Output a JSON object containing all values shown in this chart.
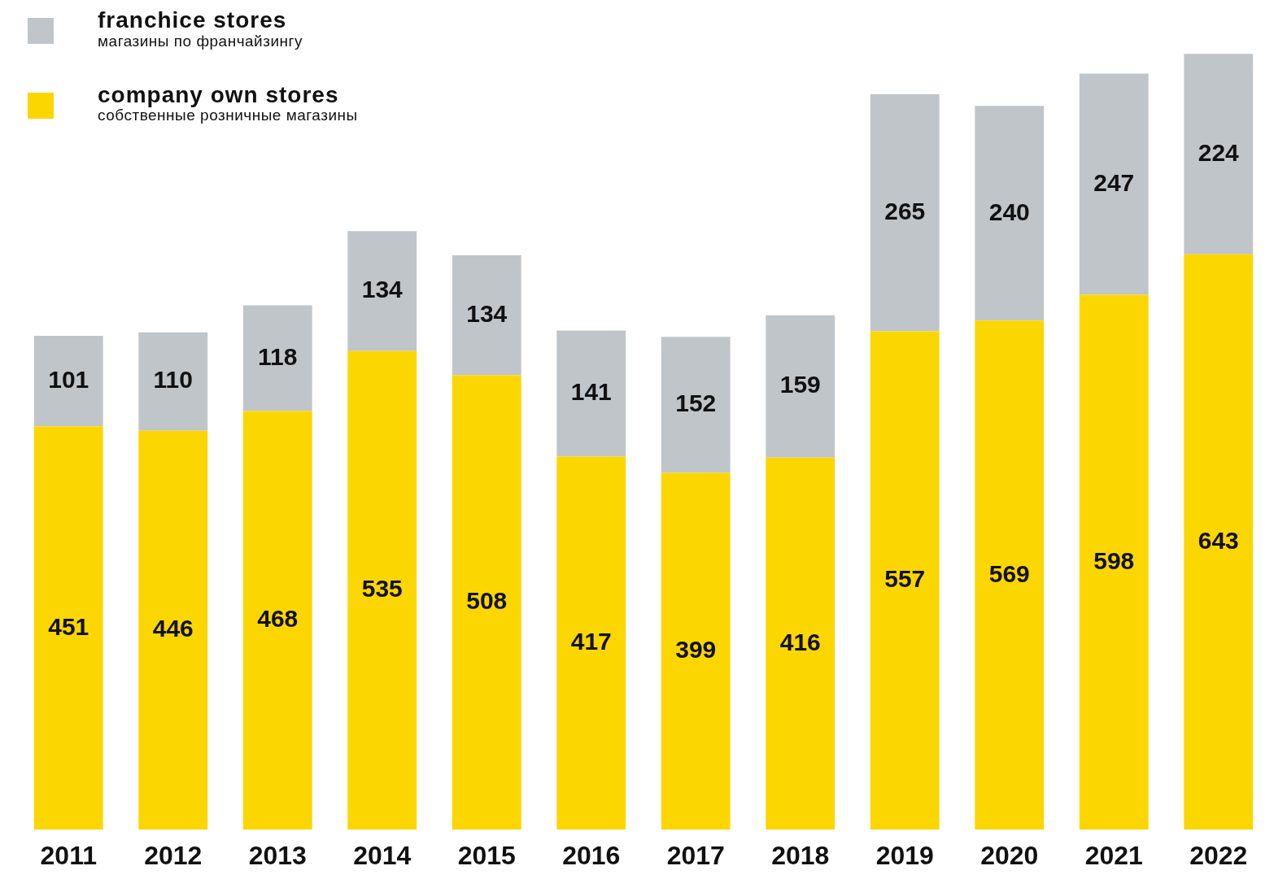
{
  "chart_data": {
    "type": "bar",
    "stacked": true,
    "categories": [
      "2011",
      "2012",
      "2013",
      "2014",
      "2015",
      "2016",
      "2017",
      "2018",
      "2019",
      "2020",
      "2021",
      "2022"
    ],
    "series": [
      {
        "name": "company own stores\nсобственные розничные магазины",
        "color": "#fcd600",
        "values": [
          451,
          446,
          468,
          535,
          508,
          417,
          399,
          416,
          557,
          569,
          598,
          643
        ]
      },
      {
        "name": "franchice stores\nмагазины по франчайзингу",
        "color": "#c0c5c9",
        "values": [
          101,
          110,
          118,
          134,
          134,
          141,
          152,
          159,
          265,
          240,
          247,
          224
        ]
      }
    ],
    "data_labels": true,
    "legend": "top left",
    "grid": false,
    "tick_labels": "x"
  }
}
